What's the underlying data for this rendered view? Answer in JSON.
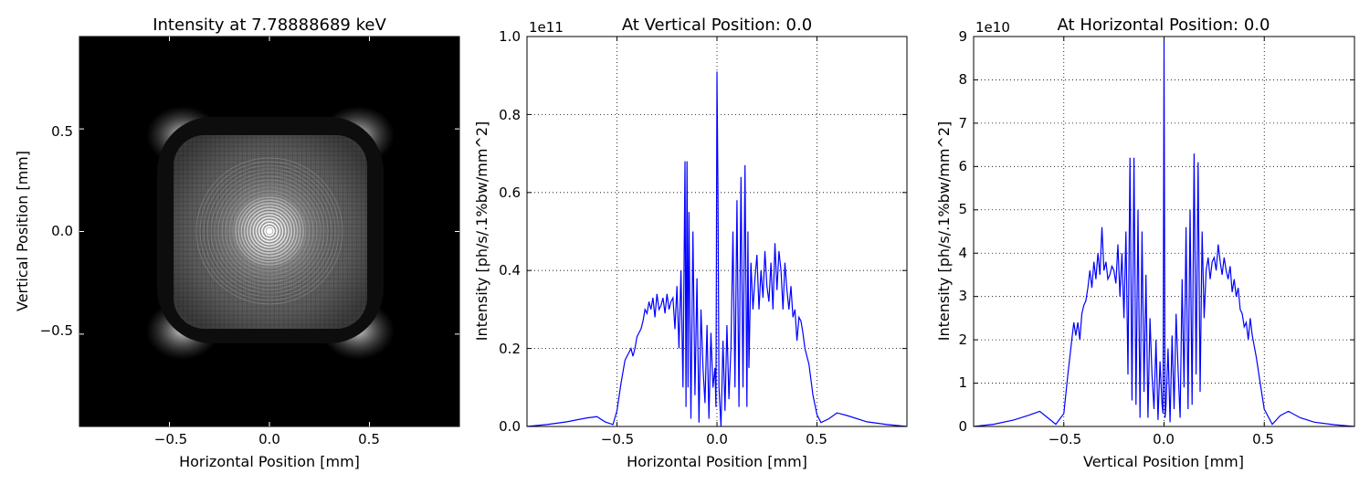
{
  "chart_data": [
    {
      "type": "heatmap",
      "title": "Intensity at 7.78888689 keV",
      "xlabel": "Horizontal Position [mm]",
      "ylabel": "Vertical Position [mm]",
      "xlim": [
        -0.95,
        0.95
      ],
      "ylim": [
        -0.95,
        0.95
      ],
      "xticks": [
        -0.5,
        0.0,
        0.5
      ],
      "xtick_labels": [
        "−0.5",
        "0.0",
        "0.5"
      ],
      "yticks": [
        0.5,
        0.0,
        -0.5
      ],
      "ytick_labels": [
        "0.5",
        "0.0",
        "−0.5"
      ],
      "colormap": "gray",
      "description": "diffraction pattern with bright central rings, square halo and bright corners"
    },
    {
      "type": "line",
      "title": "At Vertical Position: 0.0",
      "xlabel": "Horizontal Position [mm]",
      "ylabel": "Intensity [ph/s/.1%bw/mm^2]",
      "offset_label": "1e11",
      "xlim": [
        -0.95,
        0.95
      ],
      "ylim": [
        0,
        1.0
      ],
      "xticks": [
        -0.5,
        0.0,
        0.5
      ],
      "xtick_labels": [
        "−0.5",
        "0.0",
        "0.5"
      ],
      "yticks": [
        0.0,
        0.2,
        0.4,
        0.6,
        0.8,
        1.0
      ],
      "ytick_labels": [
        "0.0",
        "0.2",
        "0.4",
        "0.6",
        "0.8",
        "1.0"
      ],
      "grid": true,
      "color": "#0000ff",
      "x": [
        -0.95,
        -0.85,
        -0.75,
        -0.65,
        -0.6,
        -0.56,
        -0.52,
        -0.5,
        -0.48,
        -0.46,
        -0.44,
        -0.43,
        -0.42,
        -0.41,
        -0.4,
        -0.39,
        -0.38,
        -0.37,
        -0.36,
        -0.35,
        -0.34,
        -0.33,
        -0.32,
        -0.31,
        -0.3,
        -0.29,
        -0.28,
        -0.27,
        -0.26,
        -0.25,
        -0.24,
        -0.23,
        -0.22,
        -0.21,
        -0.2,
        -0.19,
        -0.18,
        -0.17,
        -0.16,
        -0.155,
        -0.15,
        -0.145,
        -0.14,
        -0.13,
        -0.12,
        -0.11,
        -0.1,
        -0.09,
        -0.08,
        -0.07,
        -0.06,
        -0.05,
        -0.04,
        -0.03,
        -0.02,
        -0.01,
        -0.005,
        0.0,
        0.005,
        0.01,
        0.02,
        0.03,
        0.04,
        0.05,
        0.06,
        0.07,
        0.08,
        0.09,
        0.1,
        0.11,
        0.12,
        0.13,
        0.14,
        0.15,
        0.155,
        0.16,
        0.17,
        0.18,
        0.19,
        0.2,
        0.21,
        0.22,
        0.23,
        0.24,
        0.25,
        0.26,
        0.27,
        0.28,
        0.29,
        0.3,
        0.31,
        0.32,
        0.33,
        0.34,
        0.35,
        0.36,
        0.37,
        0.38,
        0.39,
        0.4,
        0.41,
        0.42,
        0.43,
        0.44,
        0.46,
        0.48,
        0.5,
        0.52,
        0.56,
        0.6,
        0.65,
        0.75,
        0.85,
        0.95
      ],
      "y": [
        0.0,
        0.005,
        0.012,
        0.022,
        0.025,
        0.012,
        0.005,
        0.04,
        0.11,
        0.17,
        0.19,
        0.2,
        0.18,
        0.2,
        0.23,
        0.24,
        0.25,
        0.27,
        0.3,
        0.29,
        0.32,
        0.3,
        0.33,
        0.28,
        0.34,
        0.3,
        0.31,
        0.33,
        0.29,
        0.34,
        0.3,
        0.32,
        0.33,
        0.25,
        0.36,
        0.2,
        0.4,
        0.1,
        0.68,
        0.05,
        0.68,
        0.1,
        0.55,
        0.02,
        0.5,
        0.08,
        0.38,
        0.01,
        0.3,
        0.15,
        0.06,
        0.26,
        0.02,
        0.24,
        0.1,
        0.15,
        0.05,
        0.91,
        0.6,
        0.1,
        0.0,
        0.22,
        0.04,
        0.26,
        0.07,
        0.2,
        0.5,
        0.1,
        0.58,
        0.05,
        0.64,
        0.1,
        0.67,
        0.05,
        0.5,
        0.15,
        0.42,
        0.3,
        0.38,
        0.44,
        0.3,
        0.4,
        0.33,
        0.45,
        0.36,
        0.32,
        0.42,
        0.3,
        0.47,
        0.35,
        0.45,
        0.4,
        0.3,
        0.42,
        0.35,
        0.3,
        0.36,
        0.28,
        0.3,
        0.22,
        0.28,
        0.27,
        0.24,
        0.2,
        0.16,
        0.08,
        0.03,
        0.01,
        0.02,
        0.035,
        0.028,
        0.012,
        0.005,
        0.0
      ]
    },
    {
      "type": "line",
      "title": "At Horizontal Position: 0.0",
      "xlabel": "Vertical Position [mm]",
      "ylabel": "Intensity [ph/s/.1%bw/mm^2]",
      "offset_label": "1e10",
      "xlim": [
        -0.95,
        0.95
      ],
      "ylim": [
        0,
        9
      ],
      "xticks": [
        -0.5,
        0.0,
        0.5
      ],
      "xtick_labels": [
        "−0.5",
        "0.0",
        "0.5"
      ],
      "yticks": [
        0,
        1,
        2,
        3,
        4,
        5,
        6,
        7,
        8,
        9
      ],
      "ytick_labels": [
        "0",
        "1",
        "2",
        "3",
        "4",
        "5",
        "6",
        "7",
        "8",
        "9"
      ],
      "grid": true,
      "color": "#0000ff",
      "x": [
        -0.95,
        -0.85,
        -0.75,
        -0.68,
        -0.62,
        -0.58,
        -0.54,
        -0.5,
        -0.48,
        -0.46,
        -0.45,
        -0.44,
        -0.43,
        -0.42,
        -0.41,
        -0.4,
        -0.39,
        -0.38,
        -0.37,
        -0.36,
        -0.35,
        -0.34,
        -0.33,
        -0.32,
        -0.31,
        -0.3,
        -0.29,
        -0.28,
        -0.27,
        -0.26,
        -0.25,
        -0.24,
        -0.23,
        -0.22,
        -0.21,
        -0.2,
        -0.19,
        -0.18,
        -0.17,
        -0.16,
        -0.15,
        -0.14,
        -0.13,
        -0.12,
        -0.11,
        -0.1,
        -0.09,
        -0.08,
        -0.07,
        -0.06,
        -0.05,
        -0.04,
        -0.03,
        -0.02,
        -0.01,
        -0.005,
        0.0,
        0.005,
        0.01,
        0.02,
        0.03,
        0.04,
        0.05,
        0.06,
        0.07,
        0.08,
        0.09,
        0.1,
        0.11,
        0.12,
        0.13,
        0.14,
        0.15,
        0.16,
        0.17,
        0.18,
        0.19,
        0.2,
        0.21,
        0.22,
        0.23,
        0.24,
        0.25,
        0.26,
        0.27,
        0.28,
        0.29,
        0.3,
        0.31,
        0.32,
        0.33,
        0.34,
        0.35,
        0.36,
        0.37,
        0.38,
        0.39,
        0.4,
        0.41,
        0.42,
        0.43,
        0.44,
        0.46,
        0.48,
        0.5,
        0.54,
        0.58,
        0.62,
        0.68,
        0.75,
        0.85,
        0.95
      ],
      "y": [
        0.0,
        0.05,
        0.15,
        0.25,
        0.35,
        0.2,
        0.05,
        0.3,
        1.2,
        2.0,
        2.4,
        2.1,
        2.4,
        2.0,
        2.6,
        2.8,
        2.9,
        3.2,
        3.6,
        3.2,
        3.8,
        3.4,
        4.0,
        3.5,
        4.6,
        3.6,
        3.8,
        3.4,
        3.5,
        3.7,
        3.6,
        3.3,
        4.2,
        3.0,
        4.0,
        2.5,
        4.5,
        1.2,
        6.2,
        0.6,
        6.2,
        0.5,
        5.0,
        0.2,
        4.5,
        0.8,
        3.5,
        0.2,
        2.5,
        1.2,
        0.4,
        2.0,
        0.15,
        1.5,
        0.5,
        0.3,
        8.9,
        0.2,
        0.5,
        1.8,
        0.1,
        2.1,
        0.4,
        2.6,
        1.3,
        0.2,
        3.4,
        0.9,
        4.6,
        0.4,
        5.0,
        0.5,
        6.3,
        1.2,
        6.1,
        0.8,
        4.5,
        2.5,
        3.6,
        3.9,
        3.4,
        3.8,
        3.9,
        3.6,
        4.2,
        3.8,
        3.5,
        3.9,
        3.6,
        3.4,
        3.7,
        3.1,
        3.4,
        3.0,
        3.2,
        2.7,
        2.6,
        2.3,
        2.4,
        2.0,
        2.5,
        2.1,
        1.6,
        1.0,
        0.4,
        0.05,
        0.25,
        0.35,
        0.2,
        0.1,
        0.04,
        0.0
      ]
    }
  ]
}
